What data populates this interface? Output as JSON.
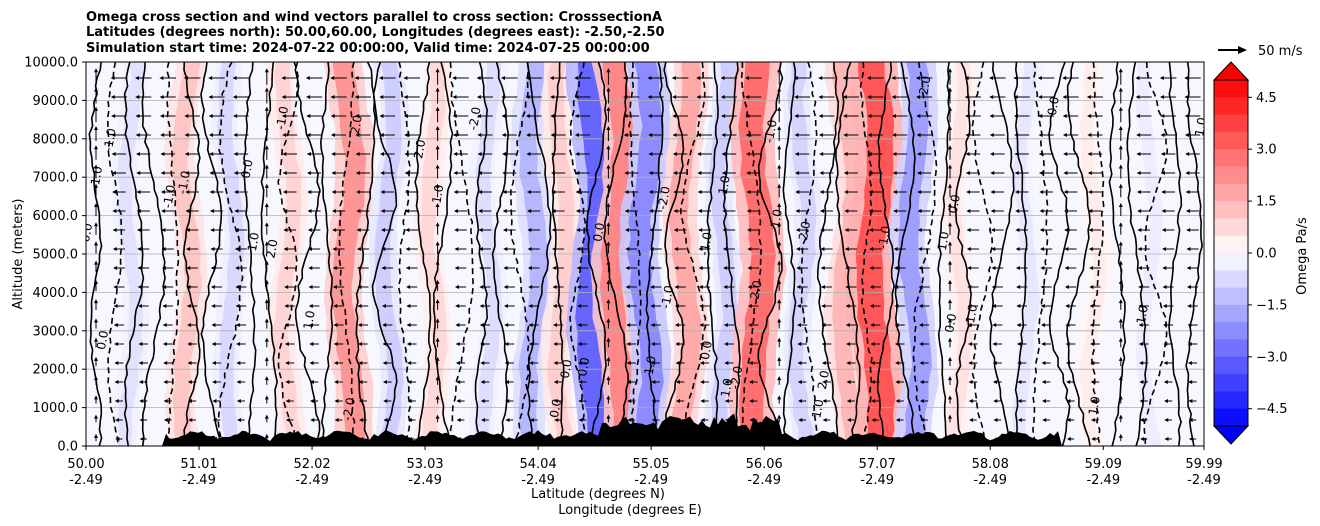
{
  "chart_data": {
    "type": "contourf",
    "title": [
      "Omega cross section and wind vectors parallel to cross section: CrosssectionA",
      "Latitudes (degrees north): 50.00,60.00, Longitudes (degrees east): -2.50,-2.50",
      "Simulation start time: 2024-07-22 00:00:00, Valid time: 2024-07-25 00:00:00"
    ],
    "ylabel": "Altitude (meters)",
    "xlabel": [
      "Latitude (degrees N)",
      "Longitude (degrees E)"
    ],
    "ylim": [
      0,
      10000
    ],
    "yticks": [
      "0.0",
      "1000.0",
      "2000.0",
      "3000.0",
      "4000.0",
      "5000.0",
      "6000.0",
      "7000.0",
      "8000.0",
      "9000.0",
      "10000.0"
    ],
    "xticks": [
      {
        "lat": "50.00",
        "lon": "-2.49"
      },
      {
        "lat": "51.01",
        "lon": "-2.49"
      },
      {
        "lat": "52.02",
        "lon": "-2.49"
      },
      {
        "lat": "53.03",
        "lon": "-2.49"
      },
      {
        "lat": "54.04",
        "lon": "-2.49"
      },
      {
        "lat": "55.05",
        "lon": "-2.49"
      },
      {
        "lat": "56.06",
        "lon": "-2.49"
      },
      {
        "lat": "57.07",
        "lon": "-2.49"
      },
      {
        "lat": "58.08",
        "lon": "-2.49"
      },
      {
        "lat": "59.09",
        "lon": "-2.49"
      },
      {
        "lat": "59.99",
        "lon": "-2.49"
      }
    ],
    "grid": "horizontal",
    "colorbar": {
      "label": "Omega Pa/s",
      "ticks": [
        "4.5",
        "3.0",
        "1.5",
        "0.0",
        "−1.5",
        "−3.0",
        "−4.5"
      ],
      "range": [
        -5,
        5
      ],
      "extend": "both",
      "colormap": "bwr"
    },
    "quiver_key": "50 m/s",
    "omega_columns": [
      {
        "lat": 50.4,
        "value": -0.6
      },
      {
        "lat": 50.9,
        "value": 1.2
      },
      {
        "lat": 51.3,
        "value": -0.8
      },
      {
        "lat": 51.8,
        "value": 0.9
      },
      {
        "lat": 52.35,
        "value": 2.2
      },
      {
        "lat": 52.7,
        "value": -1.0
      },
      {
        "lat": 53.1,
        "value": 0.8
      },
      {
        "lat": 53.6,
        "value": -0.7
      },
      {
        "lat": 54.0,
        "value": -1.5
      },
      {
        "lat": 54.25,
        "value": 1.0
      },
      {
        "lat": 54.55,
        "value": -3.2
      },
      {
        "lat": 54.75,
        "value": 2.5
      },
      {
        "lat": 55.0,
        "value": -2.4
      },
      {
        "lat": 55.35,
        "value": 1.8
      },
      {
        "lat": 55.7,
        "value": -1.0
      },
      {
        "lat": 56.0,
        "value": 3.0
      },
      {
        "lat": 56.4,
        "value": -0.9
      },
      {
        "lat": 56.8,
        "value": 1.5
      },
      {
        "lat": 57.05,
        "value": 3.5
      },
      {
        "lat": 57.4,
        "value": -2.0
      },
      {
        "lat": 57.8,
        "value": 0.6
      },
      {
        "lat": 58.4,
        "value": -0.5
      },
      {
        "lat": 59.0,
        "value": 0.4
      },
      {
        "lat": 59.5,
        "value": -0.4
      }
    ],
    "contour_labels": [
      "0.0",
      "-1.0",
      "1.0",
      "2.0",
      "-2.0",
      "0.0",
      "-1.0",
      "1.0"
    ]
  }
}
